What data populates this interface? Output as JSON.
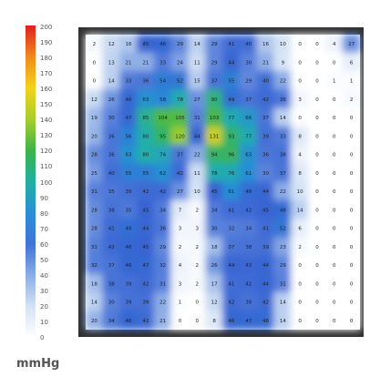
{
  "unit_label": "mmHg",
  "chart_data": {
    "type": "heatmap",
    "colorbar": {
      "ticks": [
        200,
        190,
        180,
        170,
        160,
        150,
        140,
        130,
        120,
        110,
        100,
        90,
        80,
        70,
        60,
        50,
        40,
        30,
        20,
        10,
        0
      ],
      "range": [
        0,
        200
      ],
      "unit": "mmHg"
    },
    "grid": [
      [
        2,
        12,
        16,
        45,
        46,
        29,
        14,
        29,
        41,
        40,
        16,
        10,
        0,
        0,
        4,
        27
      ],
      [
        0,
        13,
        21,
        21,
        33,
        24,
        11,
        29,
        44,
        30,
        21,
        9,
        0,
        0,
        0,
        6
      ],
      [
        0,
        14,
        33,
        36,
        54,
        52,
        15,
        37,
        55,
        29,
        40,
        22,
        0,
        0,
        1,
        1
      ],
      [
        12,
        26,
        46,
        63,
        58,
        78,
        27,
        90,
        49,
        37,
        42,
        36,
        3,
        0,
        0,
        2
      ],
      [
        19,
        30,
        47,
        85,
        104,
        105,
        31,
        103,
        77,
        66,
        37,
        14,
        0,
        0,
        0,
        0
      ],
      [
        20,
        36,
        56,
        80,
        95,
        120,
        44,
        131,
        93,
        77,
        39,
        33,
        8,
        0,
        0,
        0
      ],
      [
        28,
        36,
        63,
        80,
        74,
        37,
        22,
        94,
        96,
        63,
        36,
        38,
        4,
        0,
        0,
        0
      ],
      [
        25,
        40,
        55,
        55,
        62,
        42,
        11,
        78,
        76,
        61,
        30,
        37,
        8,
        0,
        0,
        0
      ],
      [
        31,
        35,
        39,
        42,
        42,
        27,
        10,
        45,
        61,
        48,
        44,
        22,
        10,
        0,
        0,
        0
      ],
      [
        28,
        38,
        35,
        45,
        34,
        7,
        2,
        34,
        41,
        42,
        45,
        48,
        14,
        0,
        0,
        0
      ],
      [
        28,
        41,
        49,
        44,
        36,
        3,
        3,
        30,
        32,
        34,
        41,
        52,
        6,
        0,
        0,
        0
      ],
      [
        31,
        42,
        46,
        45,
        29,
        2,
        2,
        18,
        37,
        38,
        39,
        23,
        2,
        0,
        0,
        0
      ],
      [
        32,
        37,
        46,
        47,
        32,
        4,
        2,
        26,
        44,
        43,
        44,
        29,
        0,
        0,
        0,
        0
      ],
      [
        18,
        38,
        39,
        42,
        31,
        3,
        2,
        17,
        41,
        42,
        44,
        31,
        0,
        0,
        0,
        0
      ],
      [
        14,
        30,
        39,
        39,
        22,
        1,
        0,
        12,
        42,
        38,
        42,
        14,
        0,
        0,
        0,
        0
      ],
      [
        20,
        34,
        46,
        42,
        21,
        0,
        0,
        8,
        46,
        47,
        48,
        14,
        0,
        0,
        0,
        0
      ]
    ]
  }
}
